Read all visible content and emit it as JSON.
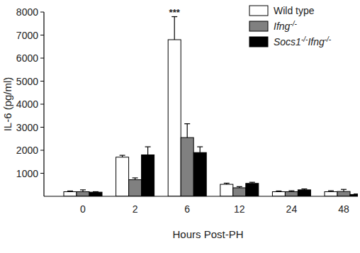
{
  "chart_data": {
    "type": "bar",
    "x_label": "Hours Post-PH",
    "y_label": "IL-6 (pg/ml)",
    "categories": [
      "0",
      "2",
      "6",
      "12",
      "24",
      "48"
    ],
    "series": [
      {
        "name": "Wild type",
        "color": "#ffffff",
        "values": [
          200,
          1700,
          6800,
          520,
          200,
          200
        ],
        "errors": [
          30,
          80,
          1000,
          50,
          30,
          40
        ]
      },
      {
        "name": "Ifng-/-",
        "color": "#808080",
        "values": [
          200,
          720,
          2550,
          370,
          200,
          210
        ],
        "errors": [
          80,
          80,
          600,
          50,
          40,
          90
        ]
      },
      {
        "name": "Socs1-/-Ifng-/-",
        "color": "#000000",
        "values": [
          180,
          1800,
          1900,
          560,
          280,
          80
        ],
        "errors": [
          20,
          350,
          250,
          50,
          40,
          20
        ]
      }
    ],
    "ylim": [
      0,
      8000
    ],
    "yticks": [
      1000,
      2000,
      3000,
      4000,
      5000,
      6000,
      7000,
      8000
    ],
    "grid": false,
    "legend": "top-right",
    "annotations": [
      {
        "text": "***",
        "x": "6",
        "series": "Wild type"
      }
    ]
  }
}
